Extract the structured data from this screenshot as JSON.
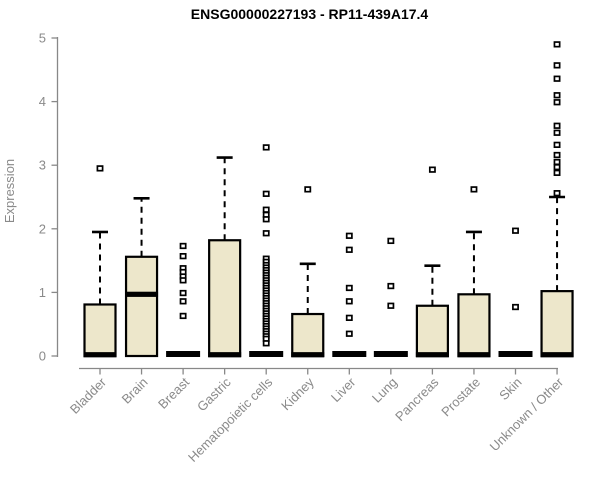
{
  "chart_data": {
    "type": "boxplot",
    "title": "ENSG00000227193 - RP11-439A17.4",
    "ylabel": "Expression",
    "xlabel": "",
    "ylim": [
      0,
      5
    ],
    "yticks": [
      0,
      1,
      2,
      3,
      4,
      5
    ],
    "grid": false,
    "legend": "none",
    "box_fill": "#EDE7CB",
    "box_stroke": "#000000",
    "median_color": "#000000",
    "outlier_fill": "#ffffff",
    "outlier_stroke": "#000000",
    "axis_color": "#888888",
    "tick_label_color": "#8a8a8a",
    "title_color": "#000000",
    "background": "#ffffff",
    "categories": [
      "Bladder",
      "Brain",
      "Breast",
      "Gastric",
      "Hematopoietic cells",
      "Kidney",
      "Liver",
      "Lung",
      "Pancreas",
      "Prostate",
      "Skin",
      "Unknown / Other"
    ],
    "boxes": [
      {
        "category": "Bladder",
        "q1": 0,
        "median": 0.02,
        "q3": 0.81,
        "whisker_low": 0,
        "whisker_high": 1.95,
        "outliers": [
          2.95
        ]
      },
      {
        "category": "Brain",
        "q1": 0,
        "median": 0.97,
        "q3": 1.56,
        "whisker_low": 0,
        "whisker_high": 2.48,
        "outliers": []
      },
      {
        "category": "Breast",
        "q1": 0,
        "median": 0.01,
        "q3": 0.01,
        "whisker_low": 0,
        "whisker_high": 0.01,
        "outliers": [
          1.73,
          1.57,
          1.38,
          1.32,
          1.25,
          1.19,
          0.99,
          0.86,
          0.63
        ]
      },
      {
        "category": "Gastric",
        "q1": 0,
        "median": 0.02,
        "q3": 1.82,
        "whisker_low": 0,
        "whisker_high": 3.12,
        "outliers": []
      },
      {
        "category": "Hematopoietic cells",
        "q1": 0,
        "median": 0.01,
        "q3": 0.01,
        "whisker_low": 0,
        "whisker_high": 0.01,
        "outliers": [
          3.28,
          2.55,
          2.3,
          2.22,
          2.15,
          1.93,
          1.53,
          1.48,
          1.43,
          1.39,
          1.35,
          1.31,
          1.27,
          1.23,
          1.19,
          1.15,
          1.11,
          1.07,
          1.03,
          0.99,
          0.95,
          0.91,
          0.87,
          0.83,
          0.79,
          0.75,
          0.71,
          0.67,
          0.63,
          0.59,
          0.55,
          0.51,
          0.47,
          0.43,
          0.39,
          0.35,
          0.31,
          0.27,
          0.2
        ]
      },
      {
        "category": "Kidney",
        "q1": 0,
        "median": 0.02,
        "q3": 0.66,
        "whisker_low": 0,
        "whisker_high": 1.45,
        "outliers": [
          2.62
        ]
      },
      {
        "category": "Liver",
        "q1": 0,
        "median": 0.01,
        "q3": 0.01,
        "whisker_low": 0,
        "whisker_high": 0.01,
        "outliers": [
          1.89,
          1.67,
          1.07,
          0.86,
          0.6,
          0.35
        ]
      },
      {
        "category": "Lung",
        "q1": 0,
        "median": 0.01,
        "q3": 0.01,
        "whisker_low": 0,
        "whisker_high": 0.01,
        "outliers": [
          1.81,
          1.1,
          0.79
        ]
      },
      {
        "category": "Pancreas",
        "q1": 0,
        "median": 0.02,
        "q3": 0.79,
        "whisker_low": 0,
        "whisker_high": 1.42,
        "outliers": [
          2.93
        ]
      },
      {
        "category": "Prostate",
        "q1": 0,
        "median": 0.02,
        "q3": 0.97,
        "whisker_low": 0,
        "whisker_high": 1.95,
        "outliers": [
          2.62
        ]
      },
      {
        "category": "Skin",
        "q1": 0,
        "median": 0.01,
        "q3": 0.01,
        "whisker_low": 0,
        "whisker_high": 0.01,
        "outliers": [
          1.97,
          0.77
        ]
      },
      {
        "category": "Unknown / Other",
        "q1": 0,
        "median": 0.02,
        "q3": 1.02,
        "whisker_low": 0,
        "whisker_high": 2.5,
        "outliers": [
          4.9,
          4.57,
          4.36,
          4.1,
          3.99,
          3.62,
          3.51,
          3.32,
          3.16,
          3.05,
          2.97,
          2.88,
          2.56
        ]
      }
    ]
  }
}
